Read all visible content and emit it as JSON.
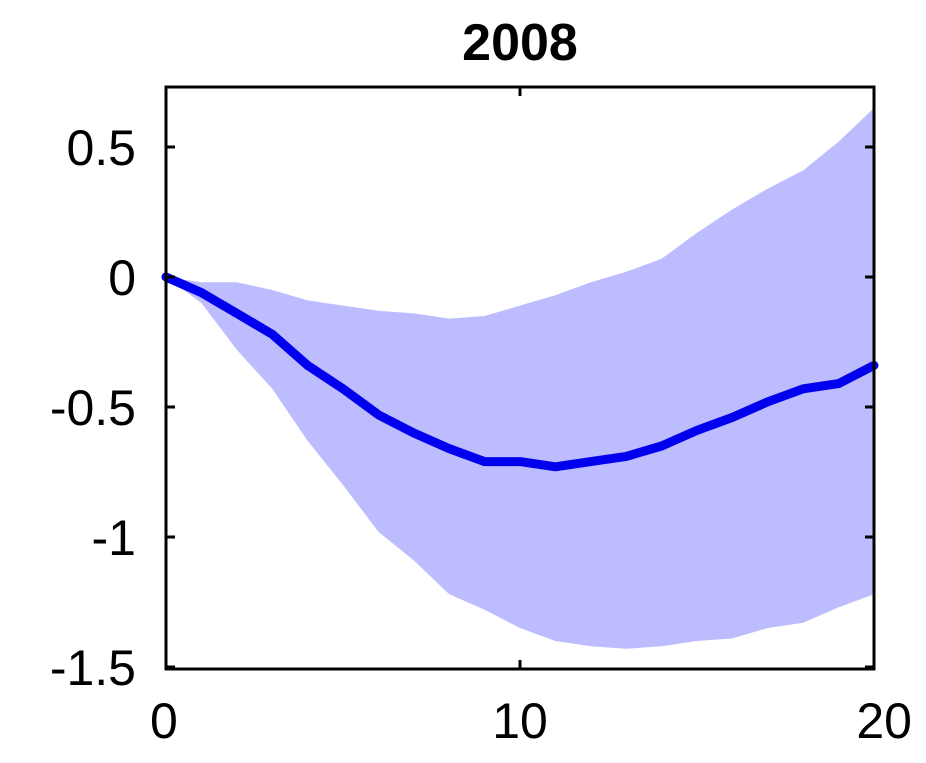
{
  "chart_data": {
    "type": "line",
    "title": "2008",
    "xlabel": "",
    "ylabel": "",
    "xlim": [
      0,
      20
    ],
    "ylim": [
      -1.5,
      0.75
    ],
    "xticks": [
      0,
      10,
      20
    ],
    "xtick_labels": [
      "0",
      "10",
      "20"
    ],
    "yticks": [
      0.5,
      0,
      -0.5,
      -1,
      -1.5
    ],
    "ytick_labels": [
      "0.5",
      "0",
      "-0.5",
      "-1",
      "-1.5"
    ],
    "grid": false,
    "legend": "none",
    "x": [
      0,
      1,
      2,
      3,
      4,
      5,
      6,
      7,
      8,
      9,
      10,
      11,
      12,
      13,
      14,
      15,
      16,
      17,
      18,
      19,
      20
    ],
    "series": [
      {
        "values": [
          0,
          -0.06,
          -0.14,
          -0.22,
          -0.34,
          -0.43,
          -0.53,
          -0.6,
          -0.66,
          -0.71,
          -0.71,
          -0.73,
          -0.71,
          -0.69,
          -0.65,
          -0.59,
          -0.54,
          -0.48,
          -0.43,
          -0.41,
          -0.34
        ],
        "color": "#0000ee"
      }
    ],
    "band": {
      "upper": [
        0,
        -0.02,
        -0.02,
        -0.05,
        -0.09,
        -0.11,
        -0.13,
        -0.14,
        -0.16,
        -0.15,
        -0.11,
        -0.07,
        -0.02,
        0.02,
        0.07,
        0.17,
        0.26,
        0.34,
        0.41,
        0.52,
        0.65
      ],
      "lower": [
        0,
        -0.1,
        -0.28,
        -0.43,
        -0.63,
        -0.8,
        -0.98,
        -1.09,
        -1.22,
        -1.28,
        -1.35,
        -1.4,
        -1.42,
        -1.43,
        -1.42,
        -1.4,
        -1.39,
        -1.35,
        -1.33,
        -1.27,
        -1.22
      ],
      "color": "#bcbcff"
    }
  }
}
